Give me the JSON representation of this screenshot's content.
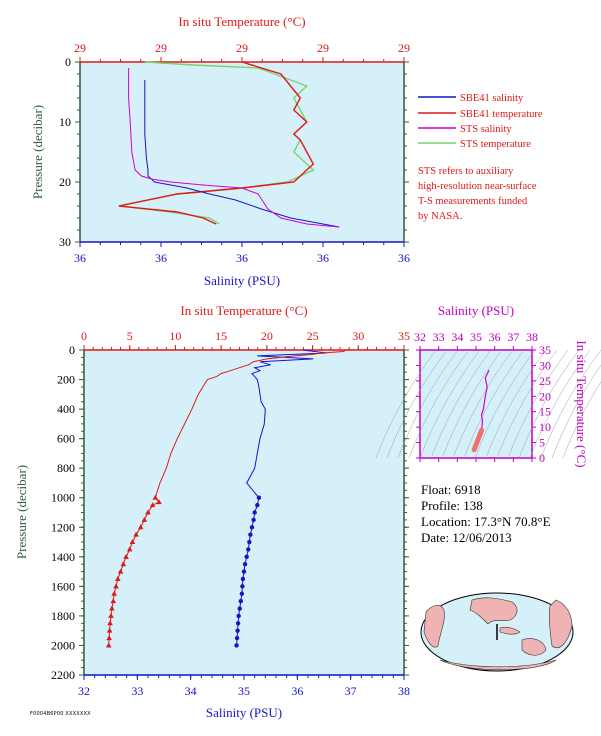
{
  "colors": {
    "plot_bg": "#d6f0fa",
    "salinity": "#1515c8",
    "temperature": "#e01818",
    "sts_salinity": "#d000d0",
    "sts_temperature": "#79d46b",
    "pressure_axis": "#2f5f3b",
    "inset_axis": "#c000c0"
  },
  "legend": [
    {
      "label": "SBE41 salinity",
      "color": "#1515c8"
    },
    {
      "label": "SBE41 temperature",
      "color": "#e01818"
    },
    {
      "label": "STS salinity",
      "color": "#d000d0"
    },
    {
      "label": "STS temperature",
      "color": "#79d46b"
    }
  ],
  "note": [
    "STS refers to auxiliary",
    "high-resolution near-surface",
    "T-S measurements funded",
    "by NASA."
  ],
  "float_info": {
    "float": "Float:  6918",
    "profile": "Profile:  138",
    "location": "Location:  17.3°N  70.8°E",
    "date": "Date:  12/06/2013"
  },
  "footer_code": "F0004B6P00 XXXXXXX",
  "chart_data": [
    {
      "type": "line",
      "panel": "near-surface",
      "top_axis_label": "In situ Temperature (°C)",
      "top_ticks": [
        "29",
        "29",
        "29",
        "29",
        "29"
      ],
      "xlabel": "Salinity (PSU)",
      "bottom_ticks": [
        "36",
        "36",
        "36",
        "36",
        "36"
      ],
      "ylabel": "Pressure (decibar)",
      "y_ticks": [
        "0",
        "10",
        "20",
        "30"
      ],
      "ylim": [
        0,
        30
      ],
      "xlim_fraction": [
        0,
        1
      ],
      "series": [
        {
          "name": "SBE41 salinity",
          "x": [
            0.2,
            0.2,
            0.2,
            0.205,
            0.21,
            0.21,
            0.22,
            0.23,
            0.28,
            0.33,
            0.4,
            0.48,
            0.56,
            0.65,
            0.8
          ],
          "y": [
            3,
            8,
            12,
            16,
            18,
            19,
            19.5,
            20,
            20.5,
            21,
            22,
            23,
            24.5,
            26,
            27.5
          ]
        },
        {
          "name": "SBE41 temperature",
          "x": [
            0.5,
            0.62,
            0.68,
            0.66,
            0.7,
            0.66,
            0.68,
            0.7,
            0.72,
            0.68,
            0.66,
            0.5,
            0.3,
            0.12,
            0.3,
            0.38,
            0.42
          ],
          "y": [
            0,
            2,
            6,
            8,
            10,
            12,
            13,
            15,
            17,
            19,
            20,
            21,
            22,
            24,
            25,
            26,
            27
          ]
        },
        {
          "name": "STS salinity",
          "x": [
            0.15,
            0.15,
            0.15,
            0.155,
            0.16,
            0.17,
            0.19,
            0.22,
            0.28,
            0.38,
            0.5,
            0.55,
            0.58,
            0.62,
            0.7,
            0.8
          ],
          "y": [
            1,
            3,
            6,
            10,
            15,
            18,
            19,
            19.5,
            20,
            20.5,
            21,
            22,
            24.5,
            26,
            27,
            27.5
          ]
        },
        {
          "name": "STS temperature",
          "x": [
            0.2,
            0.35,
            0.55,
            0.6,
            0.7,
            0.66,
            0.68,
            0.7,
            0.66,
            0.68,
            0.66,
            0.7,
            0.72,
            0.68,
            0.64,
            0.5,
            0.3,
            0.12,
            0.28,
            0.4,
            0.43
          ],
          "y": [
            0,
            0.5,
            1,
            2,
            4,
            6,
            8,
            10,
            12,
            13,
            15,
            17,
            18,
            19,
            20,
            21,
            22,
            24,
            25,
            26,
            27
          ]
        }
      ]
    },
    {
      "type": "line",
      "panel": "full-profile",
      "top_axis_label": "In situ Temperature (°C)",
      "top_ticks": [
        "0",
        "5",
        "10",
        "15",
        "20",
        "25",
        "30",
        "35"
      ],
      "temperature_range": [
        0,
        35
      ],
      "xlabel": "Salinity (PSU)",
      "bottom_ticks": [
        "32",
        "33",
        "34",
        "35",
        "36",
        "37",
        "38"
      ],
      "salinity_range": [
        32,
        38
      ],
      "ylabel": "Pressure (decibar)",
      "y_ticks": [
        "0",
        "200",
        "400",
        "600",
        "800",
        "1000",
        "1200",
        "1400",
        "1600",
        "1800",
        "2000",
        "2200"
      ],
      "ylim": [
        0,
        2200
      ],
      "series": [
        {
          "name": "Salinity",
          "pressure": [
            0,
            20,
            40,
            60,
            80,
            100,
            120,
            140,
            160,
            180,
            200,
            250,
            300,
            350,
            400,
            500,
            600,
            700,
            800,
            900,
            1000,
            1050,
            1100,
            1150,
            1200,
            1250,
            1300,
            1350,
            1400,
            1450,
            1500,
            1550,
            1600,
            1650,
            1700,
            1750,
            1800,
            1850,
            1900,
            1950,
            2000
          ],
          "values": [
            36.1,
            36.55,
            35.25,
            36.3,
            35.3,
            35.5,
            35.2,
            35.3,
            35.15,
            35.2,
            35.25,
            35.28,
            35.3,
            35.32,
            35.4,
            35.38,
            35.3,
            35.25,
            35.2,
            35.05,
            35.28,
            35.25,
            35.2,
            35.18,
            35.15,
            35.12,
            35.1,
            35.08,
            35.05,
            35.02,
            35.0,
            34.98,
            34.97,
            34.96,
            34.94,
            34.92,
            34.9,
            34.89,
            34.88,
            34.87,
            34.86
          ]
        },
        {
          "name": "Temperature",
          "pressure": [
            0,
            10,
            20,
            30,
            40,
            60,
            80,
            100,
            120,
            140,
            160,
            180,
            200,
            250,
            300,
            400,
            500,
            600,
            700,
            800,
            900,
            1000,
            1030,
            1050,
            1100,
            1150,
            1200,
            1250,
            1300,
            1350,
            1400,
            1450,
            1500,
            1550,
            1600,
            1650,
            1700,
            1750,
            1800,
            1850,
            1900,
            1950,
            2000
          ],
          "values": [
            28.6,
            28.4,
            26.0,
            25.0,
            23.0,
            20.0,
            18.5,
            18.0,
            17.0,
            16.0,
            15.0,
            14.5,
            13.5,
            13.0,
            12.5,
            11.8,
            11.0,
            10.2,
            9.5,
            9.0,
            8.3,
            7.8,
            8.2,
            7.5,
            7.0,
            6.6,
            6.2,
            5.7,
            5.3,
            5.0,
            4.6,
            4.3,
            4.0,
            3.7,
            3.5,
            3.3,
            3.2,
            3.05,
            2.95,
            2.85,
            2.8,
            2.75,
            2.7
          ]
        }
      ]
    },
    {
      "type": "scatter",
      "panel": "ts-diagram-inset",
      "xlabel": "Salinity (PSU)",
      "x_ticks": [
        "32",
        "33",
        "34",
        "35",
        "36",
        "37",
        "38"
      ],
      "xlim": [
        32,
        38
      ],
      "ylabel": "In situ Temperature (°C)",
      "y_ticks": [
        "0",
        "5",
        "10",
        "15",
        "20",
        "25",
        "30",
        "35"
      ],
      "ylim": [
        0,
        35
      ],
      "series": [
        {
          "name": "T-S",
          "x": [
            34.9,
            35.0,
            35.1,
            35.2,
            35.3,
            35.35,
            35.3,
            35.4,
            35.5,
            35.6,
            35.5,
            35.7
          ],
          "y": [
            2.7,
            3.5,
            5.0,
            7.0,
            9.0,
            12.0,
            14.0,
            16.0,
            20.0,
            23.0,
            26.0,
            28.5
          ]
        }
      ]
    }
  ]
}
